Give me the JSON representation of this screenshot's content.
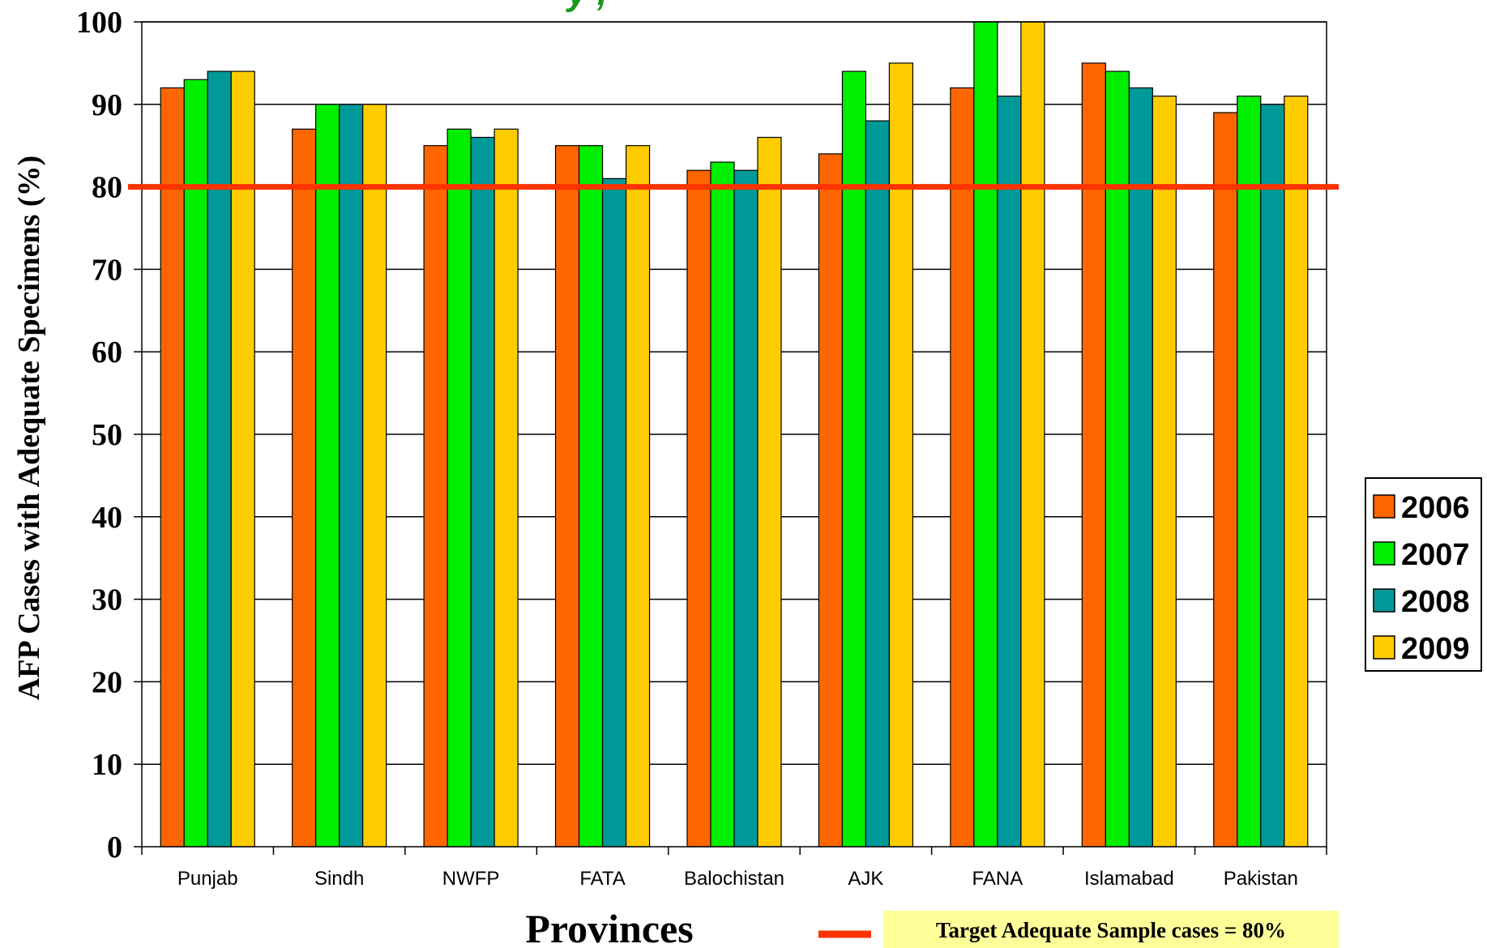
{
  "chart_data": {
    "type": "bar",
    "title": "",
    "title_fragment": "y ,",
    "xlabel": "Provinces",
    "ylabel": "AFP Cases with Adequate Specimens (%)",
    "ylim": [
      0,
      100
    ],
    "yticks": [
      0,
      10,
      20,
      30,
      40,
      50,
      60,
      70,
      80,
      90,
      100
    ],
    "grid": true,
    "legend_position": "right",
    "categories": [
      "Punjab",
      "Sindh",
      "NWFP",
      "FATA",
      "Balochistan",
      "AJK",
      "FANA",
      "Islamabad",
      "Pakistan"
    ],
    "series": [
      {
        "name": "2006",
        "color": "#ff6600",
        "values": [
          92,
          87,
          85,
          85,
          82,
          84,
          92,
          95,
          89
        ]
      },
      {
        "name": "2007",
        "color": "#00ee00",
        "values": [
          93,
          90,
          87,
          85,
          83,
          94,
          100,
          94,
          91
        ]
      },
      {
        "name": "2008",
        "color": "#009999",
        "values": [
          94,
          90,
          86,
          81,
          82,
          88,
          91,
          92,
          90
        ]
      },
      {
        "name": "2009",
        "color": "#ffcc00",
        "values": [
          94,
          90,
          87,
          85,
          86,
          95,
          100,
          91,
          91
        ]
      }
    ],
    "target": {
      "value": 80,
      "color": "#ff3300",
      "label": "Target Adequate Sample cases = 80%",
      "label_background": "#ffff99"
    }
  }
}
